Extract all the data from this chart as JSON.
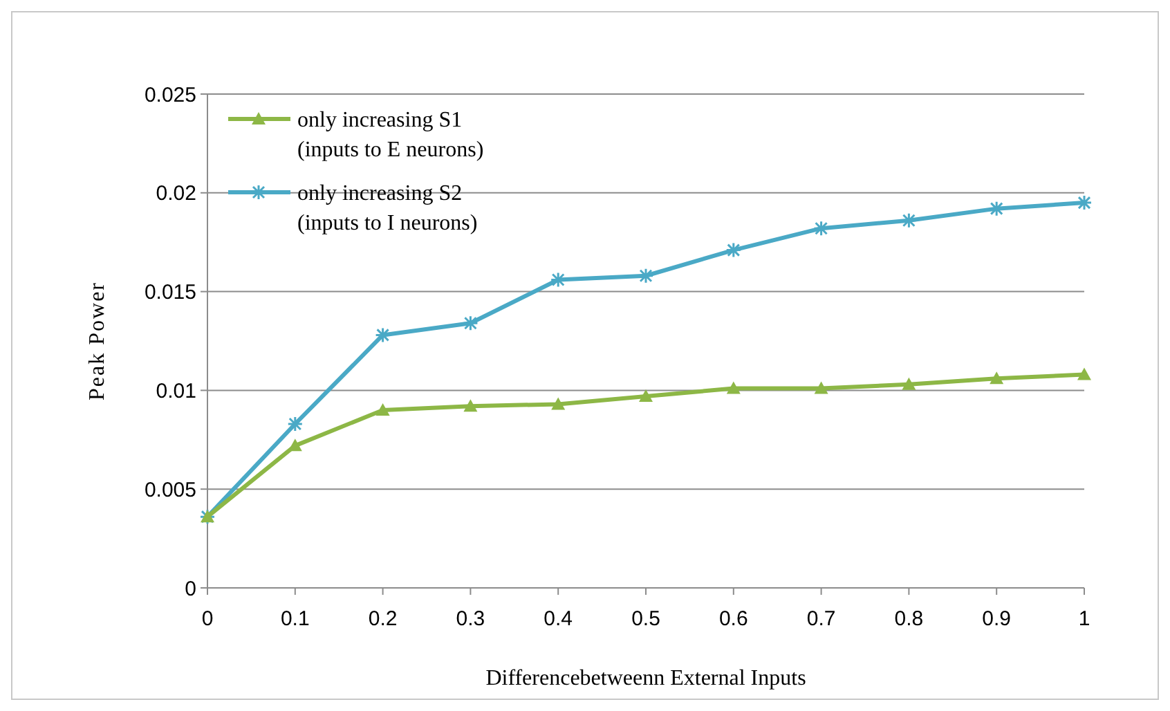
{
  "chart_data": {
    "type": "line",
    "xlabel": "Differencebetweenn External Inputs",
    "ylabel": "Peak Power",
    "x": [
      0,
      0.1,
      0.2,
      0.3,
      0.4,
      0.5,
      0.6,
      0.7,
      0.8,
      0.9,
      1
    ],
    "xlim": [
      0,
      1
    ],
    "xticks": [
      0,
      0.1,
      0.2,
      0.3,
      0.4,
      0.5,
      0.6,
      0.7,
      0.8,
      0.9,
      1
    ],
    "ylim": [
      0,
      0.025
    ],
    "yticks": [
      0,
      0.005,
      0.01,
      0.015,
      0.02,
      0.025
    ],
    "grid": "y",
    "legend": "top left",
    "series": [
      {
        "name": "only increasing S1\n(inputs to E neurons)",
        "color": "#8db746",
        "marker": "triangle",
        "values": [
          0.0036,
          0.0072,
          0.009,
          0.0092,
          0.0093,
          0.0097,
          0.0101,
          0.0101,
          0.0103,
          0.0106,
          0.0108
        ]
      },
      {
        "name": "only increasing S2\n(inputs to I neurons)",
        "color": "#4aa9c6",
        "marker": "cross",
        "values": [
          0.0036,
          0.0083,
          0.0128,
          0.0134,
          0.0156,
          0.0158,
          0.0171,
          0.0182,
          0.0186,
          0.0192,
          0.0195
        ]
      }
    ]
  }
}
